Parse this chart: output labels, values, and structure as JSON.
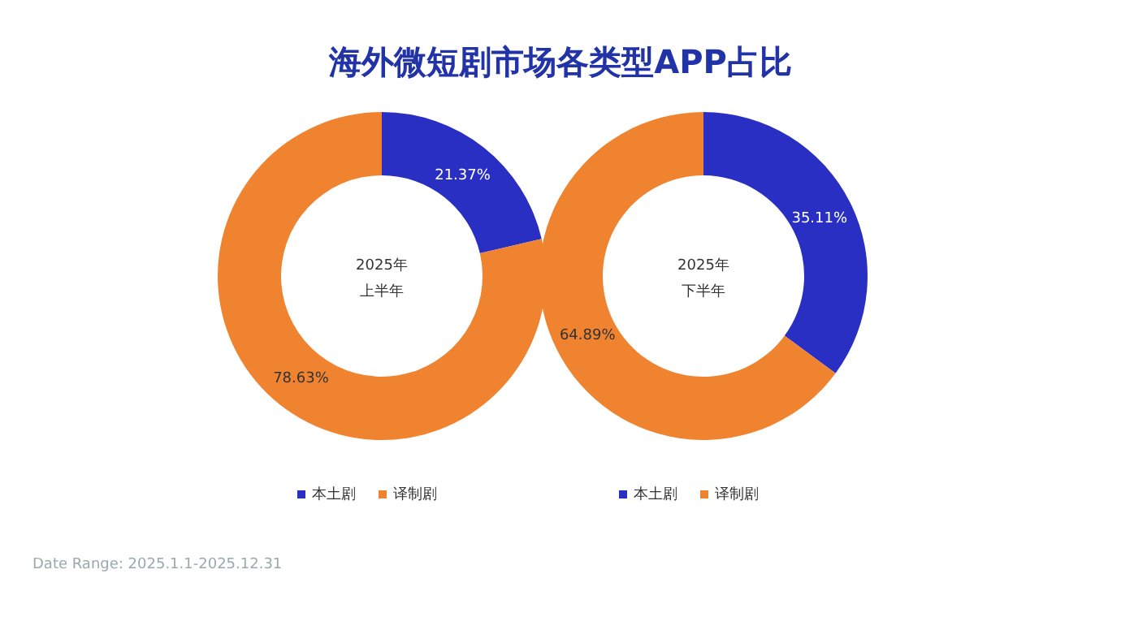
{
  "chart_data": [
    {
      "type": "donut",
      "title": "海外微短剧市场各类型APP占比",
      "categories": [
        "本土剧",
        "译制剧"
      ],
      "values": [
        21.37,
        78.63
      ],
      "value_labels": [
        "21.37%",
        "78.63%"
      ],
      "colors": [
        "#2a2fc4",
        "#f0832f"
      ],
      "legend": "bottom",
      "annotations": [
        "2025年",
        "上半年",
        "Date Range: 2025.1.1-2025.12.31"
      ]
    },
    {
      "type": "donut",
      "categories": [
        "本土剧",
        "译制剧"
      ],
      "values": [
        35.11,
        64.89
      ],
      "value_labels": [
        "35.11%",
        "64.89%"
      ],
      "colors": [
        "#2a2fc4",
        "#f0832f"
      ],
      "legend": "bottom",
      "annotations": [
        "2025年",
        "下半年"
      ]
    }
  ]
}
